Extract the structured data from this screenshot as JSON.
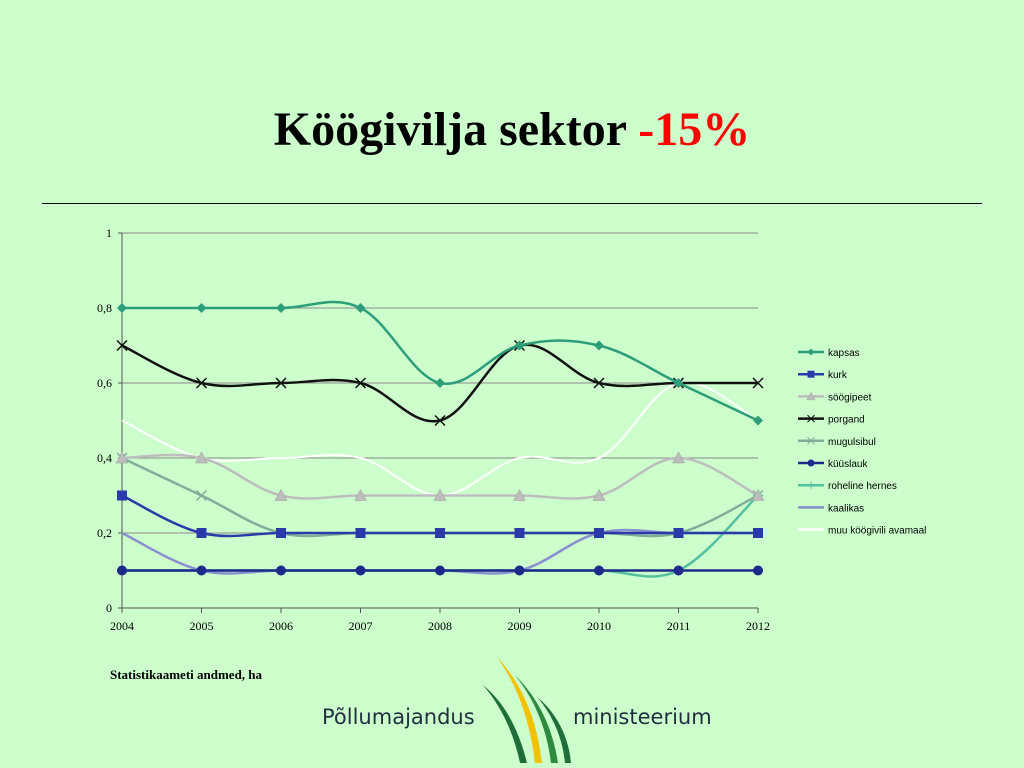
{
  "title": {
    "main": "Köögivilja sektor ",
    "accent": "-15%"
  },
  "source_note": "Statistikaameti andmed, ha",
  "logo": {
    "left_text": "Põllumajandus",
    "right_text": "ministeerium",
    "icon": "wheat-stalks-icon"
  },
  "chart_data": {
    "type": "line",
    "x": [
      "2004",
      "2005",
      "2006",
      "2007",
      "2008",
      "2009",
      "2010",
      "2011",
      "2012"
    ],
    "ylim": [
      0,
      1
    ],
    "yticks": [
      "0",
      "0,2",
      "0,4",
      "0,6",
      "0,8",
      "1"
    ],
    "ytick_values": [
      0,
      0.2,
      0.4,
      0.6,
      0.8,
      1
    ],
    "grid": true,
    "legend_position": "right",
    "series": [
      {
        "name": "kapsas",
        "color": "#2e9e7a",
        "marker": "diamond",
        "values": [
          0.8,
          0.8,
          0.8,
          0.8,
          0.6,
          0.7,
          0.7,
          0.6,
          0.5
        ]
      },
      {
        "name": "kurk",
        "color": "#2a3aa8",
        "marker": "square",
        "values": [
          0.3,
          0.2,
          0.2,
          0.2,
          0.2,
          0.2,
          0.2,
          0.2,
          0.2
        ]
      },
      {
        "name": "söögipeet",
        "color": "#bdbdbd",
        "marker": "triangle",
        "values": [
          0.4,
          0.4,
          0.3,
          0.3,
          0.3,
          0.3,
          0.3,
          0.4,
          0.3
        ]
      },
      {
        "name": "porgand",
        "color": "#111111",
        "marker": "x",
        "values": [
          0.7,
          0.6,
          0.6,
          0.6,
          0.5,
          0.7,
          0.6,
          0.6,
          0.6
        ]
      },
      {
        "name": "mugulsibul",
        "color": "#7fae9a",
        "marker": "x",
        "values": [
          0.4,
          0.3,
          0.2,
          0.2,
          0.2,
          0.2,
          0.2,
          0.2,
          0.3
        ]
      },
      {
        "name": "küüslauk",
        "color": "#1c2a8a",
        "marker": "circle",
        "values": [
          0.1,
          0.1,
          0.1,
          0.1,
          0.1,
          0.1,
          0.1,
          0.1,
          0.1
        ]
      },
      {
        "name": "roheline hernes",
        "color": "#55c0a0",
        "marker": "plus",
        "values": [
          0.1,
          0.1,
          0.1,
          0.1,
          0.1,
          0.1,
          0.1,
          0.1,
          0.3
        ]
      },
      {
        "name": "kaalikas",
        "color": "#8a8fd0",
        "marker": "none",
        "values": [
          0.2,
          0.1,
          0.1,
          0.1,
          0.1,
          0.1,
          0.2,
          0.2,
          0.2
        ]
      },
      {
        "name": "muu köögivili avamaal",
        "color": "#ffffff",
        "marker": "none",
        "values": [
          0.5,
          0.4,
          0.4,
          0.4,
          0.3,
          0.4,
          0.4,
          0.6,
          0.5
        ]
      }
    ]
  }
}
